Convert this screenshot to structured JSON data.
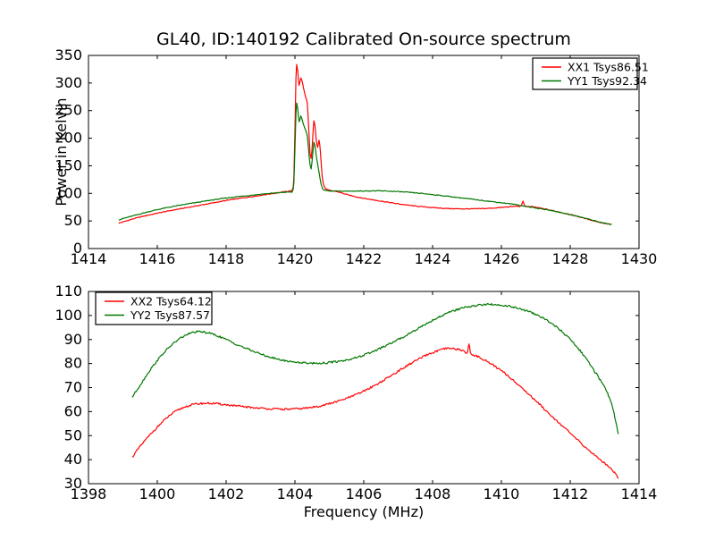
{
  "figure": {
    "title": "GL40, ID:140192 Calibrated On-source spectrum",
    "background": "#ffffff",
    "text_color": "#000000",
    "axis_color": "#000000"
  },
  "chart_data": [
    {
      "type": "line",
      "title": "GL40, ID:140192 Calibrated On-source spectrum",
      "xlabel": "",
      "ylabel": "Power in Kelvin",
      "xlim": [
        1414,
        1430
      ],
      "ylim": [
        0,
        350
      ],
      "xticks": [
        1414,
        1416,
        1418,
        1420,
        1422,
        1424,
        1426,
        1428,
        1430
      ],
      "yticks": [
        0,
        50,
        100,
        150,
        200,
        250,
        300,
        350
      ],
      "grid": false,
      "legend": {
        "position": "upper-right",
        "entries": [
          {
            "label": "XX1 Tsys86.51",
            "color": "#ff0000"
          },
          {
            "label": "YY1 Tsys92.34",
            "color": "#007700"
          }
        ]
      },
      "series": [
        {
          "name": "XX1 Tsys86.51",
          "color": "#ff0000",
          "noise_amp": 0.7,
          "points": [
            [
              1414.88,
              46
            ],
            [
              1415.1,
              50
            ],
            [
              1415.4,
              55.5
            ],
            [
              1415.7,
              60
            ],
            [
              1416.0,
              64
            ],
            [
              1416.4,
              69
            ],
            [
              1416.8,
              73.5
            ],
            [
              1417.2,
              78
            ],
            [
              1417.6,
              82.5
            ],
            [
              1418.0,
              87
            ],
            [
              1418.4,
              91
            ],
            [
              1418.8,
              94.5
            ],
            [
              1419.1,
              97.5
            ],
            [
              1419.4,
              100
            ],
            [
              1419.65,
              102.5
            ],
            [
              1419.85,
              104.5
            ],
            [
              1419.93,
              107
            ],
            [
              1419.97,
              130
            ],
            [
              1420.0,
              215
            ],
            [
              1420.03,
              310
            ],
            [
              1420.05,
              334
            ],
            [
              1420.08,
              322
            ],
            [
              1420.12,
              296
            ],
            [
              1420.17,
              309
            ],
            [
              1420.22,
              300
            ],
            [
              1420.27,
              285
            ],
            [
              1420.32,
              272
            ],
            [
              1420.36,
              262
            ],
            [
              1420.4,
              218
            ],
            [
              1420.44,
              172
            ],
            [
              1420.47,
              163
            ],
            [
              1420.51,
              192
            ],
            [
              1420.55,
              232
            ],
            [
              1420.58,
              224
            ],
            [
              1420.62,
              196
            ],
            [
              1420.66,
              184
            ],
            [
              1420.7,
              197
            ],
            [
              1420.74,
              176
            ],
            [
              1420.79,
              132
            ],
            [
              1420.85,
              113
            ],
            [
              1420.92,
              107.5
            ],
            [
              1421.0,
              105.5
            ],
            [
              1421.2,
              103.5
            ],
            [
              1421.5,
              98
            ],
            [
              1421.8,
              93.5
            ],
            [
              1422.1,
              90
            ],
            [
              1422.5,
              86
            ],
            [
              1422.9,
              82
            ],
            [
              1423.3,
              78.5
            ],
            [
              1423.7,
              75.8
            ],
            [
              1424.1,
              73.8
            ],
            [
              1424.5,
              72.4
            ],
            [
              1424.9,
              71.9
            ],
            [
              1425.3,
              72.1
            ],
            [
              1425.7,
              73.1
            ],
            [
              1426.1,
              75
            ],
            [
              1426.45,
              76.8
            ],
            [
              1426.58,
              77.4
            ],
            [
              1426.63,
              86
            ],
            [
              1426.68,
              77.3
            ],
            [
              1426.9,
              75.8
            ],
            [
              1427.2,
              72.5
            ],
            [
              1427.5,
              68.5
            ],
            [
              1427.8,
              64.5
            ],
            [
              1428.1,
              60
            ],
            [
              1428.4,
              55
            ],
            [
              1428.7,
              50
            ],
            [
              1429.0,
              45.5
            ],
            [
              1429.2,
              44
            ]
          ]
        },
        {
          "name": "YY1 Tsys92.34",
          "color": "#007700",
          "noise_amp": 0.7,
          "points": [
            [
              1414.88,
              52
            ],
            [
              1415.1,
              56
            ],
            [
              1415.4,
              61
            ],
            [
              1415.7,
              66
            ],
            [
              1416.0,
              70.5
            ],
            [
              1416.4,
              75.5
            ],
            [
              1416.8,
              80
            ],
            [
              1417.2,
              84
            ],
            [
              1417.6,
              88
            ],
            [
              1418.0,
              91.5
            ],
            [
              1418.4,
              94.5
            ],
            [
              1418.8,
              97
            ],
            [
              1419.1,
              99
            ],
            [
              1419.4,
              100.5
            ],
            [
              1419.65,
              101.8
            ],
            [
              1419.85,
              102.5
            ],
            [
              1419.93,
              104
            ],
            [
              1419.97,
              120
            ],
            [
              1420.0,
              180
            ],
            [
              1420.03,
              245
            ],
            [
              1420.05,
              263
            ],
            [
              1420.08,
              254
            ],
            [
              1420.12,
              230
            ],
            [
              1420.17,
              240
            ],
            [
              1420.22,
              231
            ],
            [
              1420.27,
              221
            ],
            [
              1420.32,
              213
            ],
            [
              1420.36,
              204
            ],
            [
              1420.4,
              176
            ],
            [
              1420.44,
              151
            ],
            [
              1420.47,
              144
            ],
            [
              1420.51,
              166
            ],
            [
              1420.55,
              193
            ],
            [
              1420.58,
              187
            ],
            [
              1420.62,
              168
            ],
            [
              1420.66,
              153
            ],
            [
              1420.7,
              139
            ],
            [
              1420.76,
              116
            ],
            [
              1420.83,
              107
            ],
            [
              1420.92,
              105
            ],
            [
              1421.1,
              104
            ],
            [
              1421.5,
              104
            ],
            [
              1422.0,
              104.3
            ],
            [
              1422.4,
              104.5
            ],
            [
              1422.8,
              103.8
            ],
            [
              1423.2,
              102.3
            ],
            [
              1423.6,
              100.3
            ],
            [
              1424.0,
              97.8
            ],
            [
              1424.4,
              95
            ],
            [
              1424.8,
              92
            ],
            [
              1425.2,
              89
            ],
            [
              1425.6,
              86
            ],
            [
              1426.0,
              83
            ],
            [
              1426.4,
              79.8
            ],
            [
              1426.8,
              75.5
            ],
            [
              1427.2,
              71.5
            ],
            [
              1427.6,
              67
            ],
            [
              1428.0,
              61.5
            ],
            [
              1428.4,
              55.5
            ],
            [
              1428.8,
              49
            ],
            [
              1429.1,
              44.5
            ],
            [
              1429.2,
              43.5
            ]
          ]
        }
      ]
    },
    {
      "type": "line",
      "title": "",
      "xlabel": "Frequency (MHz)",
      "ylabel": "",
      "xlim": [
        1398,
        1414
      ],
      "ylim": [
        30,
        110
      ],
      "xticks": [
        1398,
        1400,
        1402,
        1404,
        1406,
        1408,
        1410,
        1412,
        1414
      ],
      "yticks": [
        30,
        40,
        50,
        60,
        70,
        80,
        90,
        100,
        110
      ],
      "grid": false,
      "legend": {
        "position": "upper-left",
        "entries": [
          {
            "label": "XX2 Tsys64.12",
            "color": "#ff0000"
          },
          {
            "label": "YY2 Tsys87.57",
            "color": "#007700"
          }
        ]
      },
      "series": [
        {
          "name": "XX2 Tsys64.12",
          "color": "#ff0000",
          "noise_amp": 0.4,
          "points": [
            [
              1399.27,
              41
            ],
            [
              1399.5,
              45.5
            ],
            [
              1399.8,
              50.5
            ],
            [
              1400.1,
              55
            ],
            [
              1400.4,
              58.8
            ],
            [
              1400.7,
              61.3
            ],
            [
              1401.0,
              62.8
            ],
            [
              1401.3,
              63.4
            ],
            [
              1401.6,
              63.4
            ],
            [
              1401.9,
              63
            ],
            [
              1402.2,
              62.5
            ],
            [
              1402.6,
              61.9
            ],
            [
              1403.0,
              61.4
            ],
            [
              1403.4,
              61.1
            ],
            [
              1403.8,
              61
            ],
            [
              1404.2,
              61.3
            ],
            [
              1404.6,
              62
            ],
            [
              1405.0,
              63.3
            ],
            [
              1405.4,
              65
            ],
            [
              1405.8,
              67.2
            ],
            [
              1406.2,
              70
            ],
            [
              1406.6,
              73.2
            ],
            [
              1407.0,
              76.8
            ],
            [
              1407.4,
              80.3
            ],
            [
              1407.8,
              83.3
            ],
            [
              1408.1,
              85
            ],
            [
              1408.4,
              86.2
            ],
            [
              1408.7,
              86
            ],
            [
              1408.9,
              85.3
            ],
            [
              1409.02,
              84.6
            ],
            [
              1409.06,
              88.5
            ],
            [
              1409.1,
              84.3
            ],
            [
              1409.3,
              83
            ],
            [
              1409.6,
              80.8
            ],
            [
              1409.9,
              78
            ],
            [
              1410.2,
              74.8
            ],
            [
              1410.5,
              71
            ],
            [
              1410.8,
              67.2
            ],
            [
              1411.1,
              63.2
            ],
            [
              1411.4,
              59
            ],
            [
              1411.7,
              55
            ],
            [
              1412.0,
              51
            ],
            [
              1412.3,
              47
            ],
            [
              1412.6,
              43.2
            ],
            [
              1412.9,
              39.6
            ],
            [
              1413.15,
              36.8
            ],
            [
              1413.4,
              32.5
            ]
          ]
        },
        {
          "name": "YY2 Tsys87.57",
          "color": "#007700",
          "noise_amp": 0.4,
          "points": [
            [
              1399.27,
              66
            ],
            [
              1399.5,
              71
            ],
            [
              1399.8,
              77.5
            ],
            [
              1400.1,
              83
            ],
            [
              1400.4,
              87.5
            ],
            [
              1400.7,
              90.8
            ],
            [
              1401.0,
              92.8
            ],
            [
              1401.2,
              93.2
            ],
            [
              1401.4,
              93
            ],
            [
              1401.7,
              91.8
            ],
            [
              1402.0,
              90
            ],
            [
              1402.3,
              88
            ],
            [
              1402.6,
              86.2
            ],
            [
              1402.9,
              84.5
            ],
            [
              1403.2,
              83
            ],
            [
              1403.5,
              81.8
            ],
            [
              1403.8,
              81
            ],
            [
              1404.1,
              80.5
            ],
            [
              1404.4,
              80.2
            ],
            [
              1404.8,
              80.2
            ],
            [
              1405.2,
              80.8
            ],
            [
              1405.6,
              81.8
            ],
            [
              1406.0,
              83.5
            ],
            [
              1406.4,
              85.8
            ],
            [
              1406.8,
              88.5
            ],
            [
              1407.2,
              91.5
            ],
            [
              1407.6,
              94.8
            ],
            [
              1408.0,
              98
            ],
            [
              1408.4,
              100.8
            ],
            [
              1408.8,
              102.8
            ],
            [
              1409.2,
              104
            ],
            [
              1409.6,
              104.6
            ],
            [
              1410.0,
              104.3
            ],
            [
              1410.3,
              103.6
            ],
            [
              1410.6,
              102.5
            ],
            [
              1410.9,
              101
            ],
            [
              1411.2,
              99
            ],
            [
              1411.5,
              96.3
            ],
            [
              1411.8,
              92.8
            ],
            [
              1412.1,
              88.5
            ],
            [
              1412.4,
              83.2
            ],
            [
              1412.7,
              77
            ],
            [
              1413.0,
              70
            ],
            [
              1413.2,
              63.5
            ],
            [
              1413.3,
              57.5
            ],
            [
              1413.4,
              50.5
            ]
          ]
        }
      ]
    }
  ]
}
